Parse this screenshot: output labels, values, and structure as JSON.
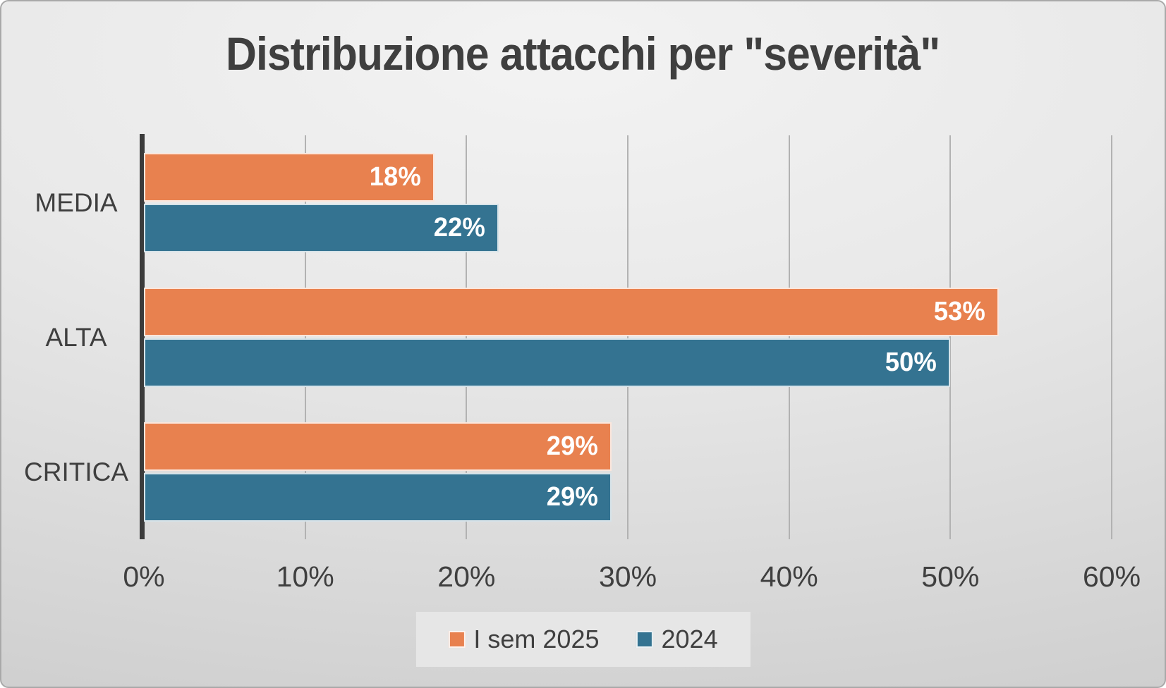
{
  "chart_data": {
    "type": "bar",
    "orientation": "horizontal",
    "title": "Distribuzione attacchi per \"severità\"",
    "categories": [
      "MEDIA",
      "ALTA",
      "CRITICA"
    ],
    "series": [
      {
        "name": "I sem 2025",
        "color": "#E8814F",
        "values": [
          18,
          53,
          29
        ]
      },
      {
        "name": "2024",
        "color": "#347391",
        "values": [
          22,
          50,
          29
        ]
      }
    ],
    "value_suffix": "%",
    "data_label_position": "inside-end",
    "data_label_color": "#ffffff",
    "xlim": [
      0,
      60
    ],
    "xtick_labels": [
      "0%",
      "10%",
      "20%",
      "30%",
      "40%",
      "50%",
      "60%"
    ],
    "grid": true,
    "legend_position": "bottom",
    "style": {
      "title_color": "#3f3f3f",
      "axis_text_color": "#3f3f3f",
      "axis_line_color": "#3b3b3b",
      "gridline_color": "#b2b2b2",
      "legend_background": "#e6e6e6"
    }
  }
}
